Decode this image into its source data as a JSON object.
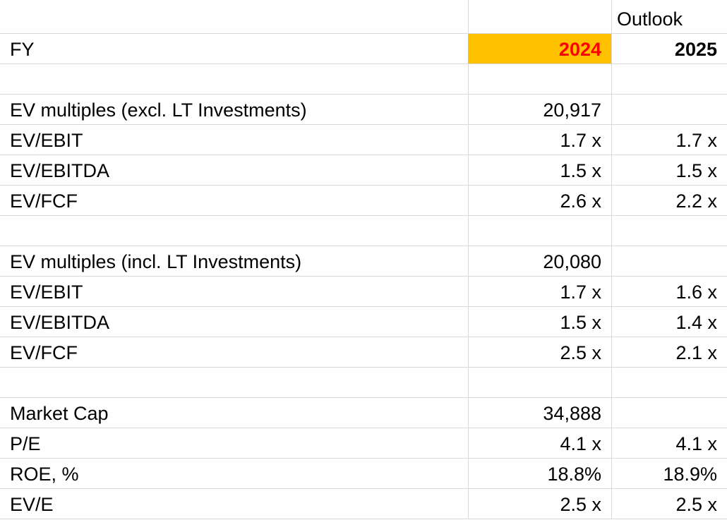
{
  "header": {
    "outlook": "Outlook",
    "fy_label": "FY",
    "year_2024": "2024",
    "year_2025": "2025",
    "highlight_color": "#ffc000",
    "year_2024_color": "#ff0000"
  },
  "rows": [
    {
      "label": "",
      "v2024": "",
      "v2025": ""
    },
    {
      "label": "EV multiples (excl. LT Investments)",
      "v2024": "20,917",
      "v2025": ""
    },
    {
      "label": "EV/EBIT",
      "v2024": "1.7 x",
      "v2025": "1.7 x"
    },
    {
      "label": "EV/EBITDA",
      "v2024": "1.5 x",
      "v2025": "1.5 x"
    },
    {
      "label": "EV/FCF",
      "v2024": "2.6 x",
      "v2025": "2.2 x"
    },
    {
      "label": "",
      "v2024": "",
      "v2025": ""
    },
    {
      "label": "EV multiples (incl. LT Investments)",
      "v2024": "20,080",
      "v2025": ""
    },
    {
      "label": "EV/EBIT",
      "v2024": "1.7 x",
      "v2025": "1.6 x"
    },
    {
      "label": "EV/EBITDA",
      "v2024": "1.5 x",
      "v2025": "1.4 x"
    },
    {
      "label": "EV/FCF",
      "v2024": "2.5 x",
      "v2025": "2.1 x"
    },
    {
      "label": "",
      "v2024": "",
      "v2025": ""
    },
    {
      "label": "Market Cap",
      "v2024": "34,888",
      "v2025": ""
    },
    {
      "label": "P/E",
      "v2024": "4.1 x",
      "v2025": "4.1 x"
    },
    {
      "label": "ROE, %",
      "v2024": "18.8%",
      "v2025": "18.9%"
    },
    {
      "label": "EV/E",
      "v2024": "2.5 x",
      "v2025": "2.5 x"
    }
  ]
}
